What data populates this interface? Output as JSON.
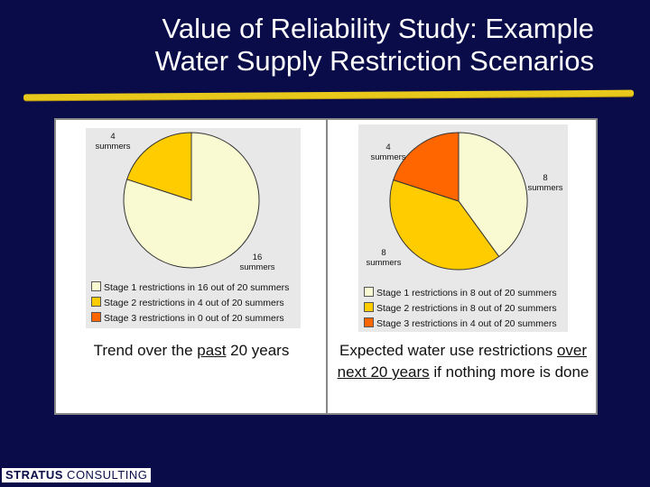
{
  "slide": {
    "title_line1": "Value of Reliability Study: Example",
    "title_line2": "Water Supply Restriction Scenarios",
    "footer_bold": "STRATUS",
    "footer_light": " CONSULTING"
  },
  "colors": {
    "background": "#0a0c4a",
    "accent": "#e8c81a",
    "stage1": "#fafad2",
    "stage2": "#ffcc00",
    "stage3": "#ff6600"
  },
  "chart_data": [
    {
      "type": "pie",
      "slices": [
        {
          "label_top": "16",
          "label_bottom": "summers",
          "value": 16,
          "color": "#fafad2"
        },
        {
          "label_top": "4",
          "label_bottom": "summers",
          "value": 4,
          "color": "#ffcc00"
        },
        {
          "label_top": "",
          "label_bottom": "",
          "value": 0,
          "color": "#ff6600"
        }
      ],
      "legend": [
        "Stage 1 restrictions in 16 out of 20 summers",
        "Stage 2 restrictions in 4 out of 20 summers",
        "Stage 3 restrictions in 0 out of 20 summers"
      ],
      "caption": {
        "pre": "Trend over the ",
        "underlined": "past",
        "post": " 20 years"
      }
    },
    {
      "type": "pie",
      "slices": [
        {
          "label_top": "8",
          "label_bottom": "summers",
          "value": 8,
          "color": "#fafad2"
        },
        {
          "label_top": "8",
          "label_bottom": "summers",
          "value": 8,
          "color": "#ffcc00"
        },
        {
          "label_top": "4",
          "label_bottom": "summers",
          "value": 4,
          "color": "#ff6600"
        }
      ],
      "legend": [
        "Stage 1 restrictions in 8 out of 20 summers",
        "Stage 2 restrictions in 8 out of 20 summers",
        "Stage 3 restrictions in 4 out of 20 summers"
      ],
      "caption": {
        "pre": "Expected water use restrictions ",
        "underlined": "over next 20 years",
        "post": " if nothing more is done"
      }
    }
  ]
}
